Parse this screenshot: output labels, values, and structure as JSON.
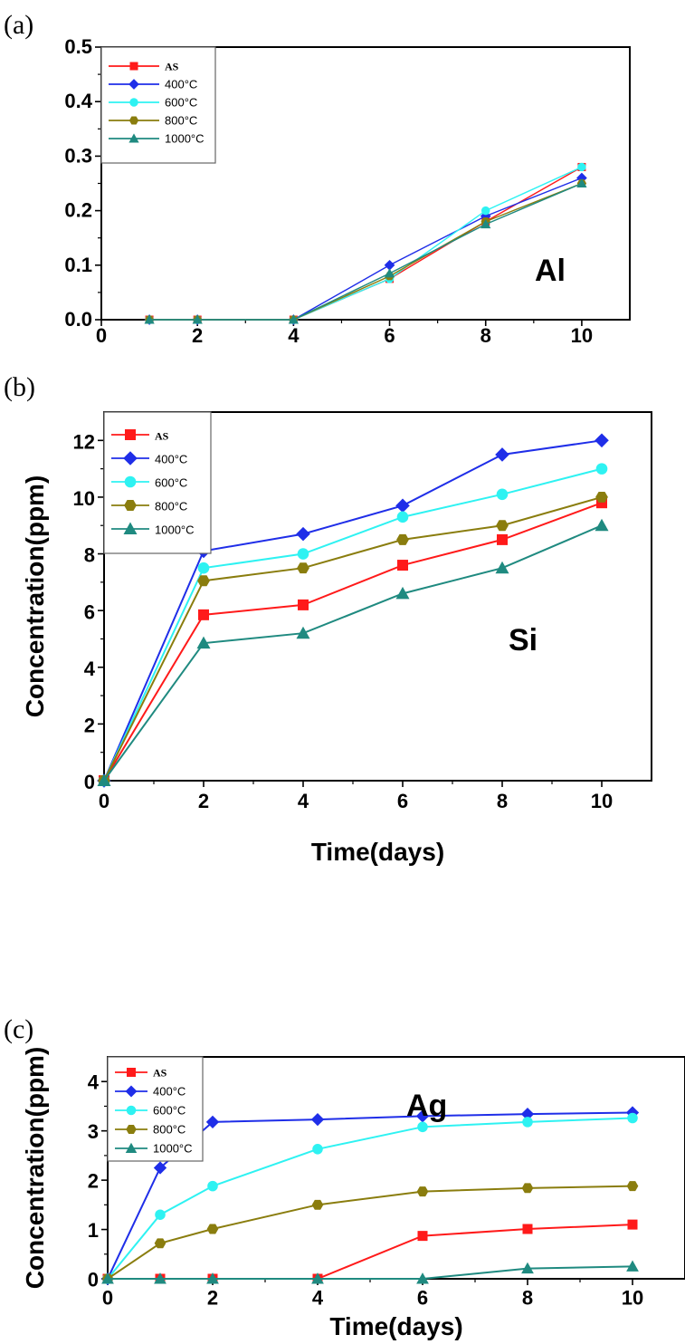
{
  "series_styles": [
    {
      "key": "as",
      "color": "#ff1a1a",
      "marker": "square"
    },
    {
      "key": "c400",
      "color": "#1f2ee8",
      "marker": "diamond"
    },
    {
      "key": "c600",
      "color": "#2ef2f2",
      "marker": "circle"
    },
    {
      "key": "c800",
      "color": "#8a7d0e",
      "marker": "hexagon"
    },
    {
      "key": "c1000",
      "color": "#1f8a80",
      "marker": "triangle"
    }
  ],
  "chart_data": [
    {
      "type": "line",
      "panel_label": "(a)",
      "element_label": "Al",
      "xlabel": "",
      "ylabel": "",
      "xlim": [
        0,
        11
      ],
      "ylim": [
        0,
        0.5
      ],
      "xticks": [
        "0",
        "2",
        "4",
        "6",
        "8",
        "10"
      ],
      "yticks": [
        "0.0",
        "0.1",
        "0.2",
        "0.3",
        "0.4",
        "0.5"
      ],
      "legend_position": "top-left",
      "x": [
        1,
        2,
        4,
        6,
        8,
        10
      ],
      "series": [
        {
          "name": "AS",
          "values": [
            0,
            0,
            0,
            0.075,
            0.18,
            0.28
          ]
        },
        {
          "name": "400°C",
          "values": [
            0,
            0,
            0,
            0.1,
            0.19,
            0.26
          ]
        },
        {
          "name": "600°C",
          "values": [
            0,
            0,
            0,
            0.075,
            0.2,
            0.28
          ]
        },
        {
          "name": "800°C",
          "values": [
            0,
            0,
            0,
            0.08,
            0.18,
            0.25
          ]
        },
        {
          "name": "1000°C",
          "values": [
            0,
            0,
            0,
            0.085,
            0.175,
            0.25
          ]
        }
      ]
    },
    {
      "type": "line",
      "panel_label": "(b)",
      "element_label": "Si",
      "xlabel": "Time(days)",
      "ylabel": "Concentration(ppm)",
      "xlim": [
        0,
        11
      ],
      "ylim": [
        0,
        13
      ],
      "xticks": [
        "0",
        "2",
        "4",
        "6",
        "8",
        "10"
      ],
      "yticks": [
        "0",
        "2",
        "4",
        "6",
        "8",
        "10",
        "12"
      ],
      "legend_position": "top-left",
      "x": [
        0,
        2,
        4,
        6,
        8,
        10
      ],
      "series": [
        {
          "name": "AS",
          "values": [
            0,
            5.85,
            6.2,
            7.6,
            8.5,
            9.8
          ]
        },
        {
          "name": "400°C",
          "values": [
            0,
            8.1,
            8.7,
            9.7,
            11.5,
            12.0
          ]
        },
        {
          "name": "600°C",
          "values": [
            0,
            7.5,
            8.0,
            9.3,
            10.1,
            11.0
          ]
        },
        {
          "name": "800°C",
          "values": [
            0,
            7.05,
            7.5,
            8.5,
            9.0,
            10.0
          ]
        },
        {
          "name": "1000°C",
          "values": [
            0,
            4.85,
            5.2,
            6.6,
            7.5,
            9.0
          ]
        }
      ]
    },
    {
      "type": "line",
      "panel_label": "(c)",
      "element_label": "Ag",
      "xlabel": "Time(days)",
      "ylabel": "Concentration(ppm)",
      "xlim": [
        0,
        11
      ],
      "ylim": [
        0,
        4.5
      ],
      "xticks": [
        "0",
        "2",
        "4",
        "6",
        "8",
        "10"
      ],
      "yticks": [
        "0",
        "1",
        "2",
        "3",
        "4"
      ],
      "legend_position": "top-left",
      "x": [
        0,
        1,
        2,
        4,
        6,
        8,
        10
      ],
      "series": [
        {
          "name": "AS",
          "values": [
            0,
            0,
            0,
            0,
            0.87,
            1.01,
            1.1
          ]
        },
        {
          "name": "400°C",
          "values": [
            0,
            2.25,
            3.18,
            3.23,
            3.3,
            3.34,
            3.37
          ]
        },
        {
          "name": "600°C",
          "values": [
            0,
            1.3,
            1.88,
            2.63,
            3.08,
            3.18,
            3.26
          ]
        },
        {
          "name": "800°C",
          "values": [
            0,
            0.72,
            1.01,
            1.5,
            1.77,
            1.84,
            1.88
          ]
        },
        {
          "name": "1000°C",
          "values": [
            0,
            0,
            0,
            0,
            0,
            0.21,
            0.25
          ]
        }
      ]
    }
  ]
}
